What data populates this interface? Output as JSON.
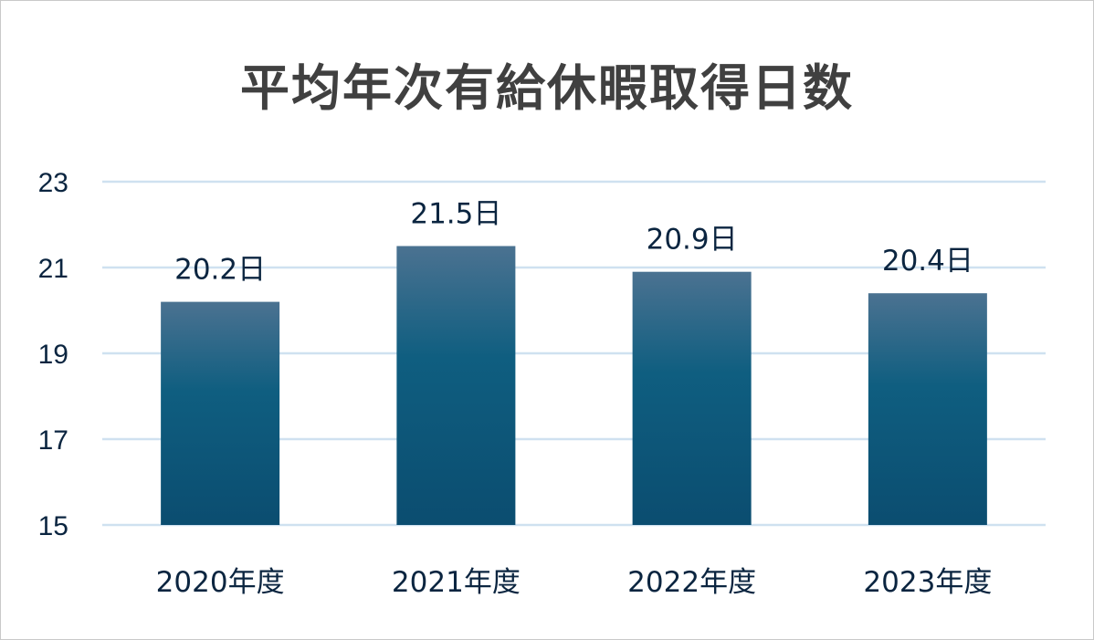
{
  "chart_data": {
    "type": "bar",
    "title": "平均年次有給休暇取得日数",
    "categories": [
      "2020年度",
      "2021年度",
      "2022年度",
      "2023年度"
    ],
    "values": [
      20.2,
      21.5,
      20.9,
      20.4
    ],
    "data_labels": [
      "20.2日",
      "21.5日",
      "20.9日",
      "20.4日"
    ],
    "y_ticks": [
      "15",
      "17",
      "19",
      "21",
      "23"
    ],
    "ylim": [
      15,
      23
    ],
    "xlabel": "",
    "ylabel": "",
    "grid": true,
    "legend": "none",
    "colors": {
      "bar_top": "#4b7291",
      "bar_mid": "#0f5e80",
      "bar_bottom": "#0b4d70",
      "grid": "#cfe1f0",
      "text": "#0b2540",
      "title": "#404040"
    }
  }
}
